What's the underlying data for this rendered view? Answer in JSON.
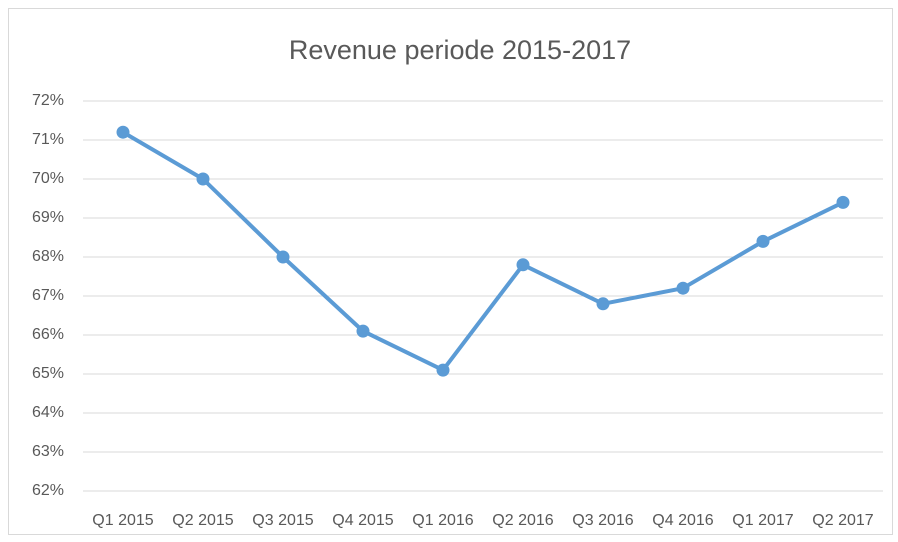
{
  "chart_data": {
    "type": "line",
    "title": "Revenue periode 2015-2017",
    "categories": [
      "Q1 2015",
      "Q2 2015",
      "Q3 2015",
      "Q4 2015",
      "Q1 2016",
      "Q2 2016",
      "Q3 2016",
      "Q4 2016",
      "Q1 2017",
      "Q2 2017"
    ],
    "series": [
      {
        "name": "Revenue",
        "color": "#5b9bd5",
        "values": [
          71.2,
          70.0,
          68.0,
          66.1,
          65.1,
          67.8,
          66.8,
          67.2,
          68.4,
          69.4
        ]
      }
    ],
    "ylim": [
      62,
      72
    ],
    "yticks": [
      {
        "value": 62,
        "label": "62%"
      },
      {
        "value": 63,
        "label": "63%"
      },
      {
        "value": 64,
        "label": "64%"
      },
      {
        "value": 65,
        "label": "65%"
      },
      {
        "value": 66,
        "label": "66%"
      },
      {
        "value": 67,
        "label": "67%"
      },
      {
        "value": 68,
        "label": "68%"
      },
      {
        "value": 69,
        "label": "69%"
      },
      {
        "value": 70,
        "label": "70%"
      },
      {
        "value": 71,
        "label": "71%"
      },
      {
        "value": 72,
        "label": "72%"
      }
    ],
    "grid": true
  }
}
